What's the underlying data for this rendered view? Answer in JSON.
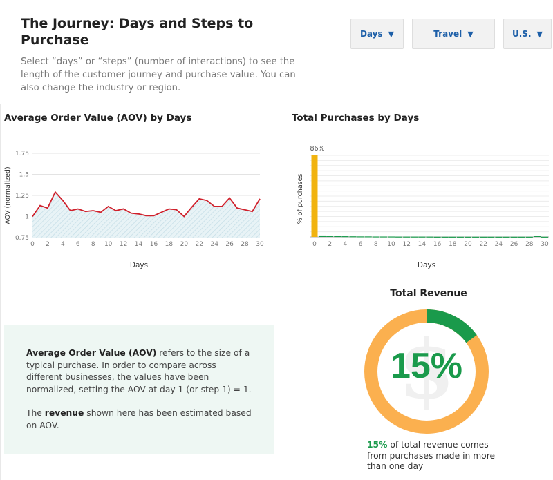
{
  "header": {
    "title": "The Journey: Days and Steps to Purchase",
    "subtitle": "Select “days” or “steps” (number of interactions) to see the length of the customer journey and purchase value. You can also change the industry or region."
  },
  "filters": [
    {
      "value": "Days",
      "caret": "▼"
    },
    {
      "value": "Travel",
      "caret": "▼"
    },
    {
      "value": "U.S.",
      "caret": "▼"
    }
  ],
  "info": {
    "p1_term": "Average Order Value (AOV)",
    "p1_rest": " refers to the size of a typical purchase. In order to compare across different businesses, the values have been normalized, setting the AOV at day 1 (or step 1) = 1.",
    "p2_pre": "The ",
    "p2_term": "revenue",
    "p2_rest": " shown here has been estimated based on AOV."
  },
  "revenue": {
    "title": "Total Revenue",
    "percent_label": "15%",
    "caption_highlight": "15%",
    "caption_rest": " of total revenue comes from purchases made in more than one day",
    "symbol": "$",
    "fraction": 0.15,
    "colors": {
      "highlight": "#1a9a4b",
      "rest": "#fbb04f"
    }
  },
  "chart_data": [
    {
      "type": "line",
      "title": "Average Order Value (AOV) by Days",
      "xlabel": "Days",
      "ylabel": "AOV (normalized)",
      "x": [
        0,
        1,
        2,
        3,
        4,
        5,
        6,
        7,
        8,
        9,
        10,
        11,
        12,
        13,
        14,
        15,
        16,
        17,
        18,
        19,
        20,
        21,
        22,
        23,
        24,
        25,
        26,
        27,
        28,
        29,
        30
      ],
      "values": [
        1.0,
        1.13,
        1.1,
        1.29,
        1.19,
        1.07,
        1.09,
        1.06,
        1.07,
        1.05,
        1.12,
        1.07,
        1.09,
        1.04,
        1.03,
        1.01,
        1.01,
        1.05,
        1.09,
        1.08,
        1.0,
        1.11,
        1.21,
        1.19,
        1.12,
        1.12,
        1.22,
        1.1,
        1.08,
        1.06,
        1.21
      ],
      "xticks": [
        0,
        2,
        4,
        6,
        8,
        10,
        12,
        14,
        16,
        18,
        20,
        22,
        24,
        26,
        28,
        30
      ],
      "yticks": [
        0.75,
        1,
        1.25,
        1.5,
        1.75
      ],
      "yticklabels": [
        "0.75",
        "1",
        "1.25",
        "1.5",
        "1.75"
      ],
      "ylim": [
        0.75,
        1.75
      ],
      "xlim": [
        0,
        30
      ],
      "grid": true,
      "colors": {
        "line": "#d0202b",
        "fill": "#cde4ec"
      }
    },
    {
      "type": "bar",
      "title": "Total Purchases by Days",
      "xlabel": "Days",
      "ylabel": "% of purchases",
      "x": [
        0,
        1,
        2,
        3,
        4,
        5,
        6,
        7,
        8,
        9,
        10,
        11,
        12,
        13,
        14,
        15,
        16,
        17,
        18,
        19,
        20,
        21,
        22,
        23,
        24,
        25,
        26,
        27,
        28,
        29,
        30
      ],
      "values": [
        86,
        1.5,
        1,
        0.8,
        0.7,
        0.6,
        0.5,
        0.5,
        0.4,
        0.4,
        0.4,
        0.3,
        0.3,
        0.3,
        0.3,
        0.3,
        0.2,
        0.2,
        0.2,
        0.2,
        0.2,
        0.2,
        0.2,
        0.2,
        0.2,
        0.2,
        0.2,
        0.2,
        0.2,
        1,
        0.2
      ],
      "data_labels": [
        {
          "x": 0,
          "text": "86%"
        }
      ],
      "xticks": [
        0,
        2,
        4,
        6,
        8,
        10,
        12,
        14,
        16,
        18,
        20,
        22,
        24,
        26,
        28,
        30
      ],
      "ylim": [
        0,
        100
      ],
      "grid": true,
      "colors": {
        "first": "#f1b30f",
        "rest": "#1a9a4b"
      }
    }
  ]
}
